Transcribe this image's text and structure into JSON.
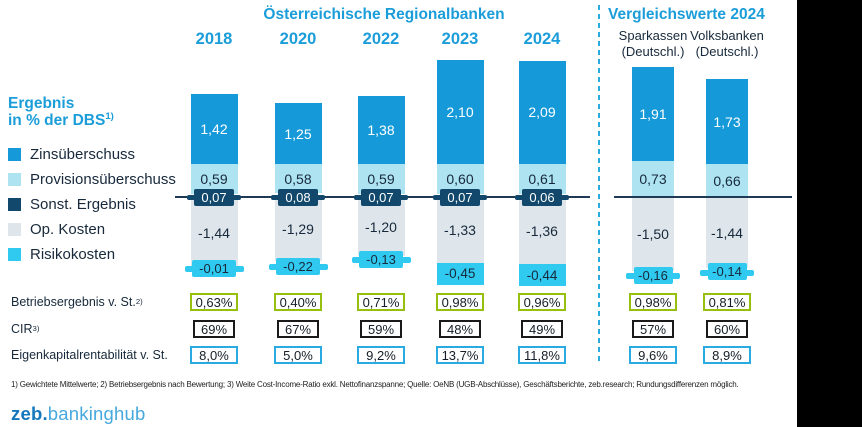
{
  "header": {
    "left_title": "Österreichische Regionalbanken",
    "right_title": "Vergleichswerte 2024",
    "right_columns": [
      {
        "line1": "Sparkassen",
        "line2": "(Deutschl.)"
      },
      {
        "line1": "Volksbanken",
        "line2": "(Deutschl.)"
      }
    ]
  },
  "legend": {
    "title_line1": "Ergebnis",
    "title_line2": "in % der DBS",
    "title_sup": "1)",
    "items": [
      {
        "key": "zinsueberschuss",
        "label": "Zinsüberschuss",
        "color": "#1699D8"
      },
      {
        "key": "provisionsueberschuss",
        "label": "Provisionsüberschuss",
        "color": "#AEE4F2"
      },
      {
        "key": "sonst_ergebnis",
        "label": "Sonst. Ergebnis",
        "color": "#11486B"
      },
      {
        "key": "op_kosten",
        "label": "Op. Kosten",
        "color": "#DEE6EC"
      },
      {
        "key": "risikokosten",
        "label": "Risikokosten",
        "color": "#30C9F0"
      }
    ]
  },
  "chart_data": {
    "type": "bar",
    "stacked": true,
    "baseline": 0,
    "ylabel": "Ergebnis in % der DBS",
    "ylim": [
      -2.0,
      2.9
    ],
    "series_order": [
      "zinsueberschuss",
      "provisionsueberschuss",
      "sonst_ergebnis",
      "op_kosten",
      "risikokosten"
    ],
    "series_labels": [
      "Zinsüberschuss",
      "Provisionsüberschuss",
      "Sonst. Ergebnis",
      "Op. Kosten",
      "Risikokosten"
    ],
    "groups": [
      {
        "title": "Österreichische Regionalbanken",
        "columns": [
          {
            "label": "2018",
            "values": [
              1.42,
              0.59,
              0.07,
              -1.44,
              -0.01
            ],
            "display": [
              "1,42",
              "0,59",
              "0,07",
              "-1,44",
              "-0,01"
            ]
          },
          {
            "label": "2020",
            "values": [
              1.25,
              0.58,
              0.08,
              -1.29,
              -0.22
            ],
            "display": [
              "1,25",
              "0,58",
              "0,08",
              "-1,29",
              "-0,22"
            ]
          },
          {
            "label": "2022",
            "values": [
              1.38,
              0.59,
              0.07,
              -1.2,
              -0.13
            ],
            "display": [
              "1,38",
              "0,59",
              "0,07",
              "-1,20",
              "-0,13"
            ]
          },
          {
            "label": "2023",
            "values": [
              2.1,
              0.6,
              0.07,
              -1.33,
              -0.45
            ],
            "display": [
              "2,10",
              "0,60",
              "0,07",
              "-1,33",
              "-0,45"
            ]
          },
          {
            "label": "2024",
            "values": [
              2.09,
              0.61,
              0.06,
              -1.36,
              -0.44
            ],
            "display": [
              "2,09",
              "0,61",
              "0,06",
              "-1,36",
              "-0,44"
            ]
          }
        ]
      },
      {
        "title": "Vergleichswerte 2024",
        "columns": [
          {
            "label": "Sparkassen (Deutschl.)",
            "values": [
              1.91,
              0.73,
              null,
              -1.5,
              -0.16
            ],
            "display": [
              "1,91",
              "0,73",
              null,
              "-1,50",
              "-0,16"
            ]
          },
          {
            "label": "Volksbanken (Deutschl.)",
            "values": [
              1.73,
              0.66,
              null,
              -1.44,
              -0.14
            ],
            "display": [
              "1,73",
              "0,66",
              null,
              "-1,44",
              "-0,14"
            ]
          }
        ]
      }
    ]
  },
  "metrics": {
    "rows": [
      {
        "label": "Betriebsergebnis v. St.",
        "sup": "2)",
        "border_color": "#97BF0E",
        "values": [
          "0,63%",
          "0,40%",
          "0,71%",
          "0,98%",
          "0,96%",
          "0,98%",
          "0,81%"
        ]
      },
      {
        "label": "CIR",
        "sup": "3)",
        "border_color": "#1A1A1A",
        "values": [
          "69%",
          "67%",
          "59%",
          "48%",
          "49%",
          "57%",
          "60%"
        ]
      },
      {
        "label": "Eigenkapitalrentabilität v. St.",
        "sup": "",
        "border_color": "#29ABE2",
        "values": [
          "8,0%",
          "5,0%",
          "9,2%",
          "13,7%",
          "11,8%",
          "9,6%",
          "8,9%"
        ]
      }
    ]
  },
  "footnote": "1) Gewichtete Mittelwerte; 2) Betriebsergebnis nach Bewertung; 3) Weite Cost-Income-Ratio exkl. Nettofinanzspanne; Quelle: OeNB (UGB-Abschlüsse), Geschäftsberichte, zeb.research; Rundungsdifferenzen möglich.",
  "logo": {
    "bold": "zeb.",
    "light": "bankinghub"
  }
}
